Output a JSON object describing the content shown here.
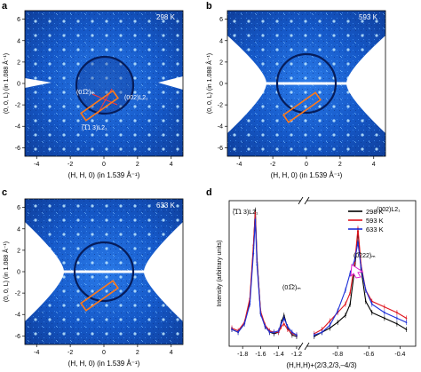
{
  "panels": [
    {
      "letter": "a",
      "temp": "298 K",
      "xlabel": "(H, H, 0) (in 1.539 Å⁻¹)",
      "ylabel": "(0, 0, L) (in 1.088 Å⁻¹)",
      "annotations": [
        "(01̅2)ₘ",
        "(002)L2₁",
        "(̅1̅1 3)L2₁"
      ]
    },
    {
      "letter": "b",
      "temp": "593 K",
      "xlabel": "(H, H, 0) (in 1.539 Å⁻¹)",
      "ylabel": "(0, 0, L) (in 1.088 Å⁻¹)"
    },
    {
      "letter": "c",
      "temp": "633 K",
      "xlabel": "(H, H, 0) (in 1.539 Å⁻¹)",
      "ylabel": "(0, 0, L) (in 1.088 Å⁻¹)"
    },
    {
      "letter": "d",
      "xlabel": "(H,H,H)+(2/3,2/3,–4/3)",
      "ylabel": "Intensity (arbitrary units)"
    }
  ],
  "map_axes": {
    "xticks": [
      "-4",
      "-2",
      "0",
      "2",
      "4"
    ],
    "yticks": [
      "6",
      "4",
      "2",
      "0",
      "-2",
      "-4",
      "-6"
    ]
  },
  "chart_data": {
    "type": "line",
    "title": "",
    "xlabel": "(H,H,H)+(2/3,2/3,–4/3)",
    "ylabel": "Intensity (arbitrary units)",
    "xticks_left": [
      "-1.8",
      "-1.6",
      "-1.4",
      "-1.2"
    ],
    "xticks_right": [
      "-0.8",
      "-0.6",
      "-0.4"
    ],
    "annotations": [
      "(̅1̅1 3)L2₁",
      "(01̅2)ₘ",
      "(0̅222)ₘ",
      "(002)L2₁"
    ],
    "legend_loc": "top-right",
    "series": [
      {
        "name": "298 K",
        "color": "#000000",
        "x": [
          -1.92,
          -1.85,
          -1.78,
          -1.72,
          -1.68,
          -1.66,
          -1.64,
          -1.6,
          -1.55,
          -1.5,
          -1.45,
          -1.4,
          -1.37,
          -1.34,
          -1.3,
          -1.25,
          -1.2,
          -0.95,
          -0.9,
          -0.85,
          -0.8,
          -0.75,
          -0.72,
          -0.69,
          -0.67,
          -0.65,
          -0.62,
          -0.58,
          -0.5,
          -0.42,
          -0.36
        ],
        "y": [
          0.12,
          0.1,
          0.16,
          0.32,
          0.7,
          0.97,
          0.62,
          0.24,
          0.14,
          0.1,
          0.09,
          0.1,
          0.17,
          0.22,
          0.13,
          0.08,
          0.07,
          0.07,
          0.1,
          0.13,
          0.17,
          0.22,
          0.3,
          0.56,
          0.82,
          0.55,
          0.32,
          0.24,
          0.2,
          0.16,
          0.12
        ]
      },
      {
        "name": "593 K",
        "color": "#e0141e",
        "x": [
          -1.92,
          -1.85,
          -1.78,
          -1.72,
          -1.68,
          -1.66,
          -1.64,
          -1.6,
          -1.55,
          -1.5,
          -1.45,
          -1.4,
          -1.37,
          -1.34,
          -1.3,
          -1.25,
          -1.2,
          -0.95,
          -0.9,
          -0.85,
          -0.8,
          -0.75,
          -0.72,
          -0.69,
          -0.67,
          -0.65,
          -0.62,
          -0.58,
          -0.5,
          -0.42,
          -0.36
        ],
        "y": [
          0.13,
          0.11,
          0.17,
          0.34,
          0.72,
          0.95,
          0.6,
          0.25,
          0.15,
          0.11,
          0.1,
          0.1,
          0.14,
          0.16,
          0.12,
          0.09,
          0.08,
          0.09,
          0.12,
          0.18,
          0.24,
          0.3,
          0.38,
          0.6,
          0.84,
          0.58,
          0.4,
          0.32,
          0.28,
          0.24,
          0.2
        ]
      },
      {
        "name": "633 K",
        "color": "#1c2fd8",
        "x": [
          -1.92,
          -1.85,
          -1.78,
          -1.72,
          -1.68,
          -1.66,
          -1.64,
          -1.6,
          -1.55,
          -1.5,
          -1.45,
          -1.4,
          -1.37,
          -1.34,
          -1.3,
          -1.25,
          -1.2,
          -0.95,
          -0.9,
          -0.85,
          -0.8,
          -0.75,
          -0.72,
          -0.69,
          -0.67,
          -0.65,
          -0.62,
          -0.58,
          -0.5,
          -0.42,
          -0.36
        ],
        "y": [
          0.12,
          0.1,
          0.16,
          0.3,
          0.66,
          0.9,
          0.58,
          0.23,
          0.14,
          0.1,
          0.1,
          0.11,
          0.16,
          0.2,
          0.14,
          0.1,
          0.08,
          0.08,
          0.1,
          0.15,
          0.25,
          0.4,
          0.52,
          0.62,
          0.74,
          0.56,
          0.4,
          0.3,
          0.24,
          0.2,
          0.17
        ]
      }
    ]
  }
}
